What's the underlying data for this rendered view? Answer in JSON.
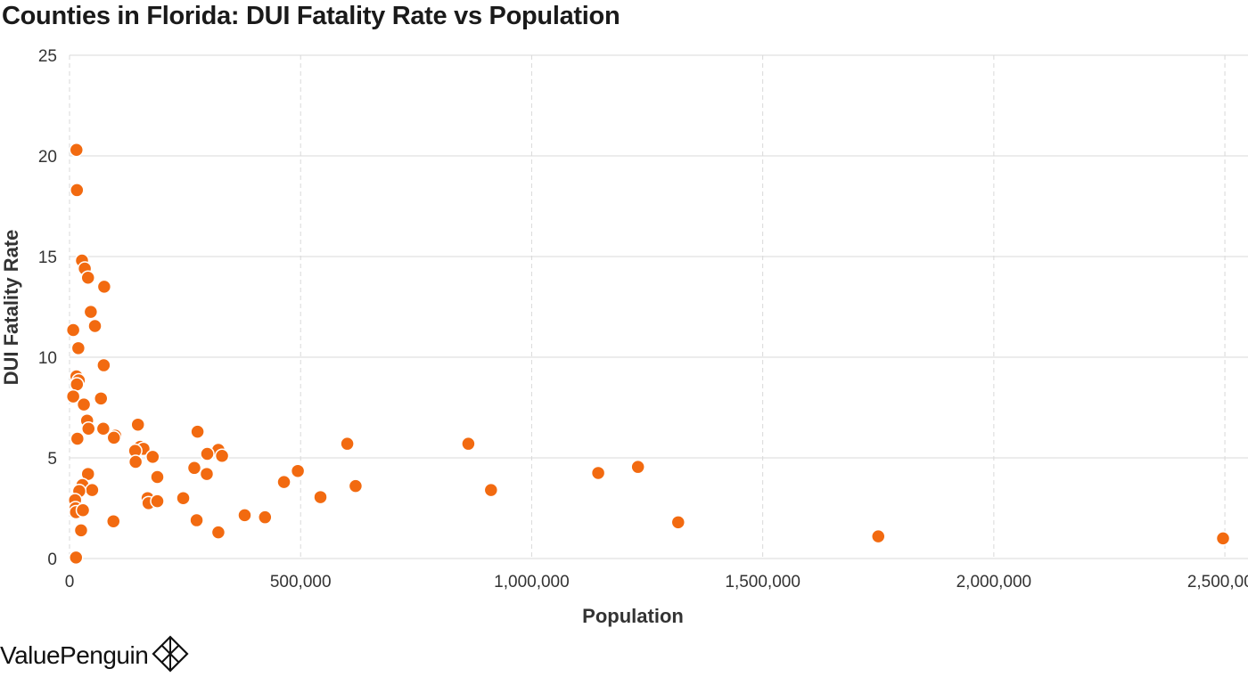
{
  "chart_data": {
    "type": "scatter",
    "title": "Counties in Florida: DUI Fatality Rate vs Population",
    "xlabel": "Population",
    "ylabel": "DUI Fatality Rate",
    "xlim": [
      0,
      2550000
    ],
    "ylim": [
      0,
      25
    ],
    "x_ticks": [
      0,
      500000,
      1000000,
      1500000,
      2000000,
      2500000
    ],
    "x_tick_labels": [
      "0",
      "500,000",
      "1,000,000",
      "1,500,000",
      "2,000,000",
      "2,500,000"
    ],
    "y_ticks": [
      0,
      5,
      10,
      15,
      20,
      25
    ],
    "y_tick_labels": [
      "0",
      "5",
      "10",
      "15",
      "20",
      "25"
    ],
    "grid": true,
    "marker_color": "#f26a10",
    "points": [
      {
        "x": 15000,
        "y": 20.3
      },
      {
        "x": 16000,
        "y": 18.3
      },
      {
        "x": 27000,
        "y": 14.8
      },
      {
        "x": 33000,
        "y": 14.4
      },
      {
        "x": 40000,
        "y": 13.95
      },
      {
        "x": 75000,
        "y": 13.5
      },
      {
        "x": 46000,
        "y": 12.25
      },
      {
        "x": 55000,
        "y": 11.55
      },
      {
        "x": 8000,
        "y": 11.35
      },
      {
        "x": 19000,
        "y": 10.45
      },
      {
        "x": 74000,
        "y": 9.6
      },
      {
        "x": 15000,
        "y": 9.05
      },
      {
        "x": 20000,
        "y": 8.85
      },
      {
        "x": 16000,
        "y": 8.65
      },
      {
        "x": 8000,
        "y": 8.05
      },
      {
        "x": 68000,
        "y": 7.95
      },
      {
        "x": 31000,
        "y": 7.65
      },
      {
        "x": 38000,
        "y": 6.85
      },
      {
        "x": 41000,
        "y": 6.45
      },
      {
        "x": 73000,
        "y": 6.45
      },
      {
        "x": 148000,
        "y": 6.65
      },
      {
        "x": 277000,
        "y": 6.3
      },
      {
        "x": 99000,
        "y": 6.1
      },
      {
        "x": 96000,
        "y": 6.0
      },
      {
        "x": 17000,
        "y": 5.95
      },
      {
        "x": 601000,
        "y": 5.7
      },
      {
        "x": 863000,
        "y": 5.7
      },
      {
        "x": 153000,
        "y": 5.55
      },
      {
        "x": 160000,
        "y": 5.45
      },
      {
        "x": 322000,
        "y": 5.4
      },
      {
        "x": 142000,
        "y": 5.35
      },
      {
        "x": 298000,
        "y": 5.2
      },
      {
        "x": 330000,
        "y": 5.1
      },
      {
        "x": 180000,
        "y": 5.05
      },
      {
        "x": 143000,
        "y": 4.8
      },
      {
        "x": 270000,
        "y": 4.5
      },
      {
        "x": 1230000,
        "y": 4.55
      },
      {
        "x": 494000,
        "y": 4.35
      },
      {
        "x": 1144000,
        "y": 4.25
      },
      {
        "x": 40000,
        "y": 4.2
      },
      {
        "x": 297000,
        "y": 4.2
      },
      {
        "x": 190000,
        "y": 4.05
      },
      {
        "x": 464000,
        "y": 3.8
      },
      {
        "x": 28000,
        "y": 3.65
      },
      {
        "x": 619000,
        "y": 3.6
      },
      {
        "x": 912000,
        "y": 3.4
      },
      {
        "x": 49000,
        "y": 3.4
      },
      {
        "x": 21000,
        "y": 3.35
      },
      {
        "x": 169000,
        "y": 3.0
      },
      {
        "x": 246000,
        "y": 3.0
      },
      {
        "x": 543000,
        "y": 3.05
      },
      {
        "x": 12000,
        "y": 2.9
      },
      {
        "x": 171000,
        "y": 2.75
      },
      {
        "x": 190000,
        "y": 2.85
      },
      {
        "x": 13000,
        "y": 2.5
      },
      {
        "x": 14000,
        "y": 2.3
      },
      {
        "x": 29000,
        "y": 2.4
      },
      {
        "x": 379000,
        "y": 2.15
      },
      {
        "x": 423000,
        "y": 2.05
      },
      {
        "x": 95000,
        "y": 1.85
      },
      {
        "x": 275000,
        "y": 1.9
      },
      {
        "x": 1317000,
        "y": 1.8
      },
      {
        "x": 25000,
        "y": 1.4
      },
      {
        "x": 322000,
        "y": 1.3
      },
      {
        "x": 1750000,
        "y": 1.1
      },
      {
        "x": 2496000,
        "y": 1.0
      },
      {
        "x": 14000,
        "y": 0.05
      }
    ]
  },
  "brand": {
    "name": "ValuePenguin",
    "logo_icon": "penguin-diamond-icon"
  }
}
